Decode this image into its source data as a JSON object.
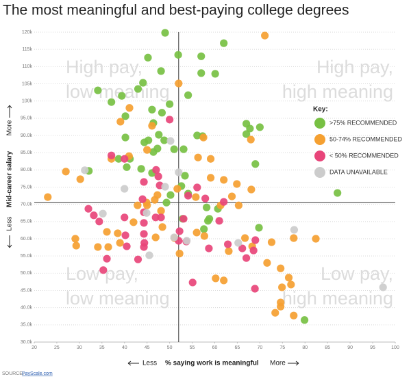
{
  "chart_data": {
    "type": "scatter",
    "title": "The most meaningful and best-paying college degrees",
    "x_label": "% saying work is meaningful",
    "x_less": "Less",
    "x_more": "More",
    "y_label": "Mid-career salary",
    "y_less": "Less",
    "y_more": "More",
    "quadrant_labels": {
      "top_left": [
        "High pay,",
        "low meaning"
      ],
      "top_right": [
        "High pay,",
        "high meaning"
      ],
      "bottom_left": [
        "Low pay,",
        "low meaning"
      ],
      "bottom_right": [
        "Low pay,",
        "high meaning"
      ]
    },
    "legend_title": "Key:",
    "source": {
      "label": "SOURCE:",
      "link": "PayScale.com"
    },
    "xlim": [
      20,
      100
    ],
    "xticks": [
      20,
      25,
      30,
      35,
      40,
      45,
      50,
      55,
      60,
      65,
      70,
      75,
      80,
      85,
      90,
      95,
      100
    ],
    "ylim": [
      30000,
      120000
    ],
    "yticks": [
      {
        "value": 30000,
        "label": "30.0k"
      },
      {
        "value": 35000,
        "label": "35.0k"
      },
      {
        "value": 40000,
        "label": "40.0k"
      },
      {
        "value": 45000,
        "label": "45.0k"
      },
      {
        "value": 50000,
        "label": "50.0k"
      },
      {
        "value": 55000,
        "label": "55.0k"
      },
      {
        "value": 60000,
        "label": "60.0k"
      },
      {
        "value": 65000,
        "label": "65.0k"
      },
      {
        "value": 70000,
        "label": "70.0k"
      },
      {
        "value": 75000,
        "label": "75.0k"
      },
      {
        "value": 80000,
        "label": "80.0k"
      },
      {
        "value": 85000,
        "label": "85.0k"
      },
      {
        "value": 90000,
        "label": "90.0k"
      },
      {
        "value": 95000,
        "label": "95.0k"
      },
      {
        "value": 100000,
        "label": "100k"
      },
      {
        "value": 105000,
        "label": "105k"
      },
      {
        "value": 110000,
        "label": "110k"
      },
      {
        "value": 115000,
        "label": "115k"
      },
      {
        "value": 120000,
        "label": "120k"
      }
    ],
    "grid": true,
    "reference_lines": {
      "x": 52,
      "y": 70500
    },
    "series": [
      {
        "name": ">75% RECOMMENDED",
        "color": "#77c043",
        "x": [
          49.0,
          62.0,
          51.9,
          57.0,
          45.2,
          48.1,
          57.0,
          60.1,
          44.1,
          43.0,
          34.1,
          54.1,
          39.4,
          37.1,
          50.0,
          46.1,
          48.3,
          40.2,
          67.0,
          70.0,
          67.8,
          67.0,
          46.4,
          45.3,
          44.4,
          40.2,
          47.6,
          48.8,
          56.1,
          57.3,
          51.0,
          47.3,
          46.4,
          53.1,
          38.7,
          41.2,
          69.0,
          40.5,
          43.7,
          32.1,
          46.1,
          53.4,
          52.6,
          50.2,
          49.3,
          54.1,
          58.2,
          60.7,
          58.5,
          58.8,
          69.8,
          57.6,
          52.9,
          87.2,
          79.9
        ],
        "values": [
          119800,
          116800,
          113400,
          113000,
          112600,
          108700,
          108100,
          107900,
          105300,
          103500,
          103100,
          101700,
          101500,
          99700,
          99100,
          97500,
          96600,
          95600,
          93400,
          92400,
          92000,
          90400,
          93600,
          88600,
          88000,
          89400,
          90200,
          88600,
          90000,
          89800,
          86000,
          86200,
          85200,
          86000,
          83200,
          83200,
          81700,
          80800,
          80300,
          79700,
          79100,
          78300,
          75300,
          72700,
          70500,
          73100,
          69100,
          68700,
          65200,
          65800,
          63200,
          62800,
          65800,
          73300,
          36400
        ]
      },
      {
        "name": "50-74% RECOMMENDED",
        "color": "#f5a031",
        "x": [
          71.1,
          52.0,
          41.1,
          39.1,
          46.1,
          68.0,
          57.5,
          59.1,
          56.3,
          41.0,
          45.0,
          37.1,
          27.0,
          30.2,
          23.0,
          59.1,
          62.0,
          64.9,
          68.1,
          63.8,
          65.3,
          61.3,
          55.8,
          51.7,
          47.3,
          46.7,
          45.0,
          48.1,
          42.9,
          44.9,
          42.0,
          48.4,
          56.0,
          57.7,
          51.1,
          46.9,
          29.1,
          29.3,
          34.1,
          36.4,
          39.0,
          38.5,
          52.2,
          63.1,
          66.7,
          72.6,
          77.5,
          82.4,
          71.6,
          74.6,
          74.9,
          76.4,
          76.9,
          74.6,
          74.6,
          73.4,
          77.5,
          60.2,
          62.0,
          68.3,
          36.1
        ],
        "values": [
          119000,
          105100,
          98000,
          94000,
          92800,
          88800,
          89400,
          83200,
          83600,
          84000,
          85800,
          83200,
          79500,
          77300,
          72100,
          77700,
          77100,
          75900,
          74300,
          72300,
          69700,
          69700,
          72100,
          74500,
          72700,
          71300,
          69700,
          68100,
          69700,
          70500,
          64800,
          63400,
          61800,
          60800,
          60200,
          60400,
          60000,
          58000,
          57600,
          57600,
          58800,
          61600,
          55700,
          56400,
          60200,
          59000,
          60200,
          60000,
          53000,
          51400,
          45900,
          48700,
          46700,
          40300,
          41500,
          38500,
          37700,
          48500,
          47900,
          57800,
          62000
        ]
      },
      {
        "name": "< 50% RECOMMENDED",
        "color": "#e8457a",
        "x": [
          50.0,
          37.1,
          40.0,
          47.0,
          44.3,
          47.8,
          47.5,
          56.1,
          54.1,
          57.9,
          62.0,
          44.0,
          44.3,
          32.0,
          33.2,
          34.4,
          40.0,
          46.9,
          53.1,
          61.0,
          44.3,
          48.1,
          40.2,
          44.3,
          52.0,
          53.7,
          44.4,
          44.3,
          40.5,
          58.7,
          62.9,
          66.1,
          68.6,
          69.0,
          67.0,
          43.0,
          36.1,
          35.3,
          55.1,
          68.9,
          52.2
        ],
        "values": [
          94600,
          84200,
          83200,
          80000,
          76500,
          75500,
          78100,
          74900,
          72500,
          71700,
          70700,
          71500,
          67700,
          68700,
          66800,
          65000,
          66200,
          66200,
          65800,
          65200,
          64600,
          66200,
          61000,
          61400,
          59400,
          59200,
          58800,
          57600,
          57800,
          57200,
          58400,
          57200,
          56600,
          59600,
          54400,
          54000,
          54200,
          50900,
          47300,
          45500,
          62200
        ]
      },
      {
        "name": "DATA UNAVAILABLE",
        "color": "#cccccc",
        "x": [
          50.2,
          31.2,
          52.0,
          40.0,
          49.0,
          44.9,
          35.2,
          51.0,
          53.8,
          65.2,
          77.6,
          45.5,
          97.3
        ],
        "values": [
          88400,
          79900,
          79300,
          74500,
          75100,
          67500,
          67300,
          60400,
          59400,
          58800,
          62600,
          55200,
          45900
        ]
      }
    ]
  }
}
